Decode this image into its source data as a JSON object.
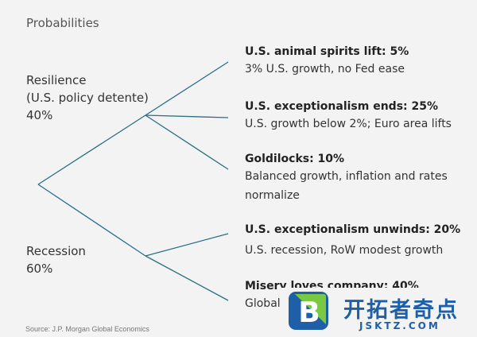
{
  "header": "Probabilities",
  "branches": [
    {
      "label_lines": [
        "Resilience",
        "(U.S. policy detente)"
      ],
      "pct": "40%"
    },
    {
      "label_lines": [
        "Recession"
      ],
      "pct": "60%"
    }
  ],
  "scenarios": [
    {
      "title": "U.S. animal spirits lift: 5%",
      "desc": [
        "3% U.S. growth, no Fed ease"
      ]
    },
    {
      "title": "U.S. exceptionalism ends: 25%",
      "desc": [
        "U.S. growth below 2%; Euro area lifts"
      ]
    },
    {
      "title": "Goldilocks: 10%",
      "desc": [
        "Balanced growth, inflation and rates",
        "normalize"
      ]
    },
    {
      "title": "U.S. exceptionalism unwinds: 20%",
      "desc": [
        "U.S. recession, RoW modest growth"
      ]
    },
    {
      "title": "Misery loves company: 40%",
      "desc": [
        "Global"
      ]
    }
  ],
  "source": "Source: J.P. Morgan Global Economics",
  "watermark": {
    "cn": "开拓者奇点",
    "en": "JSKTZ.COM",
    "logo_letter": "B"
  },
  "colors": {
    "line": "#2a6f86",
    "background": "#f3f3f3",
    "watermark_blue": "#1f5fa8",
    "watermark_green": "#7ac943"
  }
}
